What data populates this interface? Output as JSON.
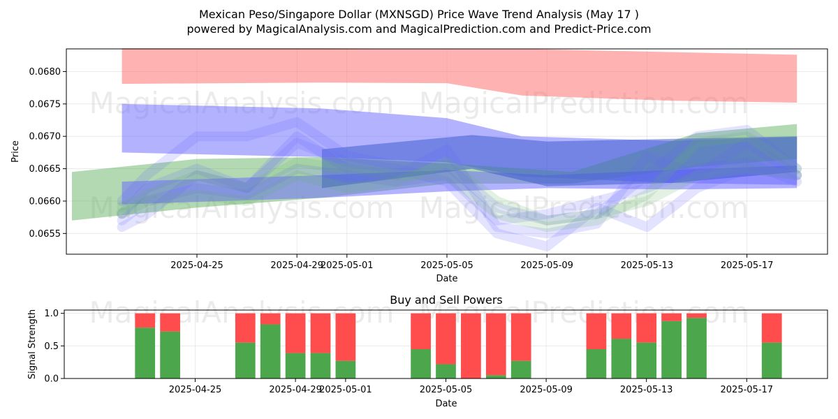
{
  "header": {
    "title": "Mexican Peso/Singapore Dollar (MXNSGD) Price Wave Trend Analysis (May 17 )",
    "subtitle": "powered by MagicalAnalysis.com and MagicalPrediction.com and Predict-Price.com"
  },
  "watermarks": {
    "left": "MagicalAnalysis.com",
    "right": "MagicalPrediction.com"
  },
  "chart_data": [
    {
      "type": "area",
      "title": "",
      "xlabel": "Date",
      "ylabel": "Price",
      "x_range": [
        "2025-04-20",
        "2025-05-20"
      ],
      "ylim": [
        0.06518,
        0.06835
      ],
      "grid": true,
      "x_ticks": [
        "2025-04-25",
        "2025-04-29",
        "2025-05-01",
        "2025-05-05",
        "2025-05-09",
        "2025-05-13",
        "2025-05-17"
      ],
      "y_ticks": [
        0.0655,
        0.066,
        0.0665,
        0.067,
        0.0675,
        0.068
      ],
      "y_tick_labels": [
        "0.0655",
        "0.0660",
        "0.0665",
        "0.0670",
        "0.0675",
        "0.0680"
      ],
      "colors": {
        "red": "#ff6666",
        "blue": "#6666ff",
        "green": "#66b366",
        "dark_blue": "#3355cc"
      },
      "bands": [
        {
          "color": "red",
          "x": [
            "2025-04-22",
            "2025-04-30",
            "2025-05-05",
            "2025-05-08",
            "2025-05-14",
            "2025-05-19"
          ],
          "upper": [
            0.06836,
            0.06836,
            0.06835,
            0.06835,
            0.0683,
            0.06826
          ],
          "lower": [
            0.06781,
            0.06783,
            0.06782,
            0.06763,
            0.06755,
            0.06752
          ]
        },
        {
          "color": "blue",
          "x": [
            "2025-04-22",
            "2025-04-30",
            "2025-05-05",
            "2025-05-08",
            "2025-05-14",
            "2025-05-19"
          ],
          "upper": [
            0.0675,
            0.06743,
            0.06728,
            0.067,
            0.06693,
            0.06699
          ],
          "lower": [
            0.06675,
            0.06668,
            0.0666,
            0.06638,
            0.06628,
            0.06625
          ]
        },
        {
          "color": "green",
          "x": [
            "2025-04-20",
            "2025-04-25",
            "2025-04-30",
            "2025-05-05",
            "2025-05-10",
            "2025-05-15",
            "2025-05-19"
          ],
          "upper": [
            0.06645,
            0.06665,
            0.06668,
            0.06658,
            0.06645,
            0.06705,
            0.06719
          ],
          "lower": [
            0.0657,
            0.0659,
            0.06605,
            0.06627,
            0.06627,
            0.06653,
            0.06665
          ]
        },
        {
          "color": "blue",
          "x": [
            "2025-04-22",
            "2025-04-30",
            "2025-05-05",
            "2025-05-09",
            "2025-05-14",
            "2025-05-19"
          ],
          "upper": [
            0.0663,
            0.0664,
            0.06648,
            0.0664,
            0.06648,
            0.06655
          ],
          "lower": [
            0.06595,
            0.06605,
            0.06615,
            0.0662,
            0.06618,
            0.0662
          ]
        },
        {
          "color": "dark_blue",
          "x": [
            "2025-04-30",
            "2025-05-06",
            "2025-05-09",
            "2025-05-14",
            "2025-05-19"
          ],
          "upper": [
            0.0668,
            0.06702,
            0.06692,
            0.06696,
            0.067
          ],
          "lower": [
            0.0662,
            0.0665,
            0.06623,
            0.06628,
            0.06645
          ]
        }
      ],
      "waves": [
        {
          "color": "blue",
          "x": [
            "2025-04-22",
            "2025-04-23",
            "2025-04-25",
            "2025-04-27",
            "2025-04-29",
            "2025-05-01",
            "2025-05-03",
            "2025-05-05",
            "2025-05-07",
            "2025-05-09",
            "2025-05-11",
            "2025-05-13",
            "2025-05-15",
            "2025-05-17",
            "2025-05-19"
          ],
          "y": [
            0.066,
            0.0664,
            0.067,
            0.067,
            0.06722,
            0.0667,
            0.06655,
            0.06655,
            0.0659,
            0.0657,
            0.0658,
            0.0664,
            0.067,
            0.0671,
            0.0665
          ]
        },
        {
          "color": "blue",
          "x": [
            "2025-04-22",
            "2025-04-23",
            "2025-04-25",
            "2025-04-27",
            "2025-04-29",
            "2025-05-01",
            "2025-05-03",
            "2025-05-05",
            "2025-05-07",
            "2025-05-09",
            "2025-05-11",
            "2025-05-13",
            "2025-05-15",
            "2025-05-17",
            "2025-05-19"
          ],
          "y": [
            0.0658,
            0.0662,
            0.0665,
            0.0662,
            0.067,
            0.0665,
            0.0664,
            0.0668,
            0.0656,
            0.0655,
            0.06565,
            0.0667,
            0.0664,
            0.0669,
            0.0664
          ]
        },
        {
          "color": "blue",
          "x": [
            "2025-04-22",
            "2025-04-23",
            "2025-04-25",
            "2025-04-27",
            "2025-04-29",
            "2025-05-01",
            "2025-05-03",
            "2025-05-05",
            "2025-05-07",
            "2025-05-09",
            "2025-05-11",
            "2025-05-13",
            "2025-05-15",
            "2025-05-17",
            "2025-05-19"
          ],
          "y": [
            0.0657,
            0.066,
            0.0662,
            0.0661,
            0.0665,
            0.0664,
            0.0663,
            0.0664,
            0.0657,
            0.0658,
            0.066,
            0.0662,
            0.0665,
            0.0666,
            0.0663
          ]
        },
        {
          "color": "blue",
          "x": [
            "2025-04-22",
            "2025-04-23",
            "2025-04-25",
            "2025-04-27",
            "2025-04-29",
            "2025-05-01",
            "2025-05-03",
            "2025-05-05",
            "2025-05-07",
            "2025-05-09",
            "2025-05-11",
            "2025-05-13",
            "2025-05-15",
            "2025-05-17",
            "2025-05-19"
          ],
          "y": [
            0.0656,
            0.0658,
            0.0664,
            0.0662,
            0.0669,
            0.0666,
            0.0665,
            0.0663,
            0.0655,
            0.0653,
            0.0659,
            0.0656,
            0.0662,
            0.0665,
            0.0664
          ]
        },
        {
          "color": "green",
          "x": [
            "2025-04-22",
            "2025-04-23",
            "2025-04-25",
            "2025-04-27",
            "2025-04-29",
            "2025-05-01",
            "2025-05-03",
            "2025-05-05",
            "2025-05-07",
            "2025-05-09",
            "2025-05-11",
            "2025-05-13",
            "2025-05-15",
            "2025-05-17",
            "2025-05-19"
          ],
          "y": [
            0.0659,
            0.0661,
            0.0664,
            0.0662,
            0.0666,
            0.0665,
            0.0664,
            0.0664,
            0.0658,
            0.0656,
            0.0657,
            0.0661,
            0.0669,
            0.067,
            0.0665
          ]
        },
        {
          "color": "green",
          "x": [
            "2025-04-22",
            "2025-04-23",
            "2025-04-25",
            "2025-04-27",
            "2025-04-29",
            "2025-05-01",
            "2025-05-03",
            "2025-05-05",
            "2025-05-07",
            "2025-05-09",
            "2025-05-11",
            "2025-05-13",
            "2025-05-15",
            "2025-05-17",
            "2025-05-19"
          ],
          "y": [
            0.0658,
            0.066,
            0.0661,
            0.066,
            0.0664,
            0.0662,
            0.0663,
            0.0666,
            0.066,
            0.0657,
            0.0658,
            0.066,
            0.0664,
            0.0665,
            0.0664
          ]
        }
      ]
    },
    {
      "type": "bar",
      "title": "Buy and Sell Powers",
      "xlabel": "Date",
      "ylabel": "Signal Strength",
      "x_range": [
        "2025-04-20",
        "2025-05-20"
      ],
      "ylim": [
        0,
        1.05
      ],
      "grid": true,
      "x_ticks": [
        "2025-04-25",
        "2025-04-29",
        "2025-05-01",
        "2025-05-05",
        "2025-05-09",
        "2025-05-13",
        "2025-05-17"
      ],
      "y_ticks": [
        0,
        0.5,
        1
      ],
      "y_tick_labels": [
        "0.0",
        "0.5",
        "1.0"
      ],
      "colors": {
        "buy": "#4ca64c",
        "sell": "#ff4c4c"
      },
      "bars": [
        {
          "date": "2025-04-23",
          "buy": 0.78
        },
        {
          "date": "2025-04-24",
          "buy": 0.72
        },
        {
          "date": "2025-04-27",
          "buy": 0.55
        },
        {
          "date": "2025-04-28",
          "buy": 0.83
        },
        {
          "date": "2025-04-29",
          "buy": 0.39
        },
        {
          "date": "2025-04-30",
          "buy": 0.39
        },
        {
          "date": "2025-05-01",
          "buy": 0.27
        },
        {
          "date": "2025-05-04",
          "buy": 0.45
        },
        {
          "date": "2025-05-05",
          "buy": 0.22
        },
        {
          "date": "2025-05-06",
          "buy": 0.0
        },
        {
          "date": "2025-05-07",
          "buy": 0.05
        },
        {
          "date": "2025-05-08",
          "buy": 0.27
        },
        {
          "date": "2025-05-11",
          "buy": 0.45
        },
        {
          "date": "2025-05-12",
          "buy": 0.61
        },
        {
          "date": "2025-05-13",
          "buy": 0.55
        },
        {
          "date": "2025-05-14",
          "buy": 0.88
        },
        {
          "date": "2025-05-15",
          "buy": 0.93
        },
        {
          "date": "2025-05-18",
          "buy": 0.55
        }
      ]
    }
  ]
}
